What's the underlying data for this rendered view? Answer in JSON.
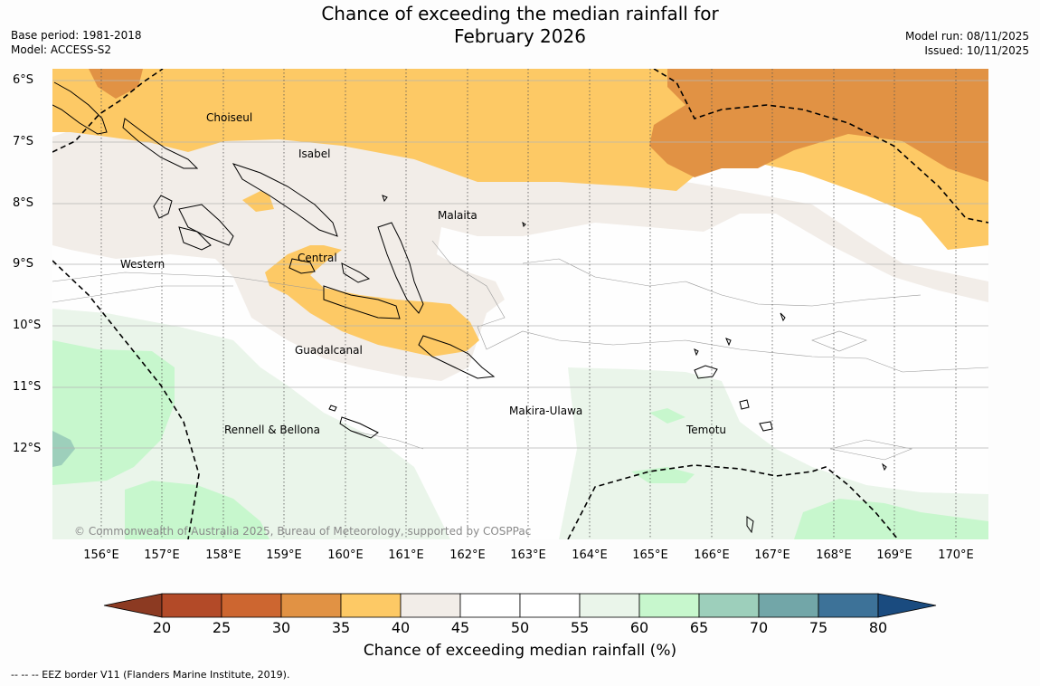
{
  "title": {
    "line1": "Chance of exceeding the median rainfall for",
    "line2": "February 2026"
  },
  "meta": {
    "base_period": "Base period: 1981-2018",
    "model": "Model: ACCESS-S2",
    "model_run": "Model run: 08/11/2025",
    "issued": "Issued: 10/11/2025"
  },
  "map": {
    "lat_labels": [
      "6°S",
      "7°S",
      "8°S",
      "9°S",
      "10°S",
      "11°S",
      "12°S"
    ],
    "lon_labels": [
      "156°E",
      "157°E",
      "158°E",
      "159°E",
      "160°E",
      "161°E",
      "162°E",
      "163°E",
      "164°E",
      "165°E",
      "166°E",
      "167°E",
      "168°E",
      "169°E",
      "170°E"
    ],
    "places": {
      "choiseul": "Choiseul",
      "isabel": "Isabel",
      "malaita": "Malaita",
      "central": "Central",
      "western": "Western",
      "guadalcanal": "Guadalcanal",
      "makira": "Makira-Ulawa",
      "rennell": "Rennell & Bellona",
      "temotu": "Temotu"
    },
    "copyright": "© Commonwealth of Australia 2025, Bureau of Meteorology, supported by COSPPac",
    "eez_style": "dashed",
    "coastline_color": "#000000"
  },
  "colorbar": {
    "ticks": [
      "20",
      "25",
      "30",
      "35",
      "40",
      "45",
      "50",
      "55",
      "60",
      "65",
      "70",
      "75",
      "80"
    ],
    "colors": {
      "below_20": "#8c3a22",
      "c20_25": "#b34a28",
      "c25_30": "#cd6630",
      "c30_35": "#e19244",
      "c35_40": "#fdc965",
      "c40_45": "#f2ede8",
      "c45_50": "#ffffff",
      "c50_55": "#ffffff",
      "c55_60": "#eaf5ea",
      "c60_65": "#c7f7cd",
      "c65_70": "#9dcfbb",
      "c70_75": "#72a6a8",
      "c75_80": "#3d7298",
      "above_80": "#1a4b7f"
    },
    "title": "Chance of exceeding median rainfall (%)"
  },
  "footnote": "--  --  -- EEZ border V11 (Flanders Marine Institute, 2019)."
}
